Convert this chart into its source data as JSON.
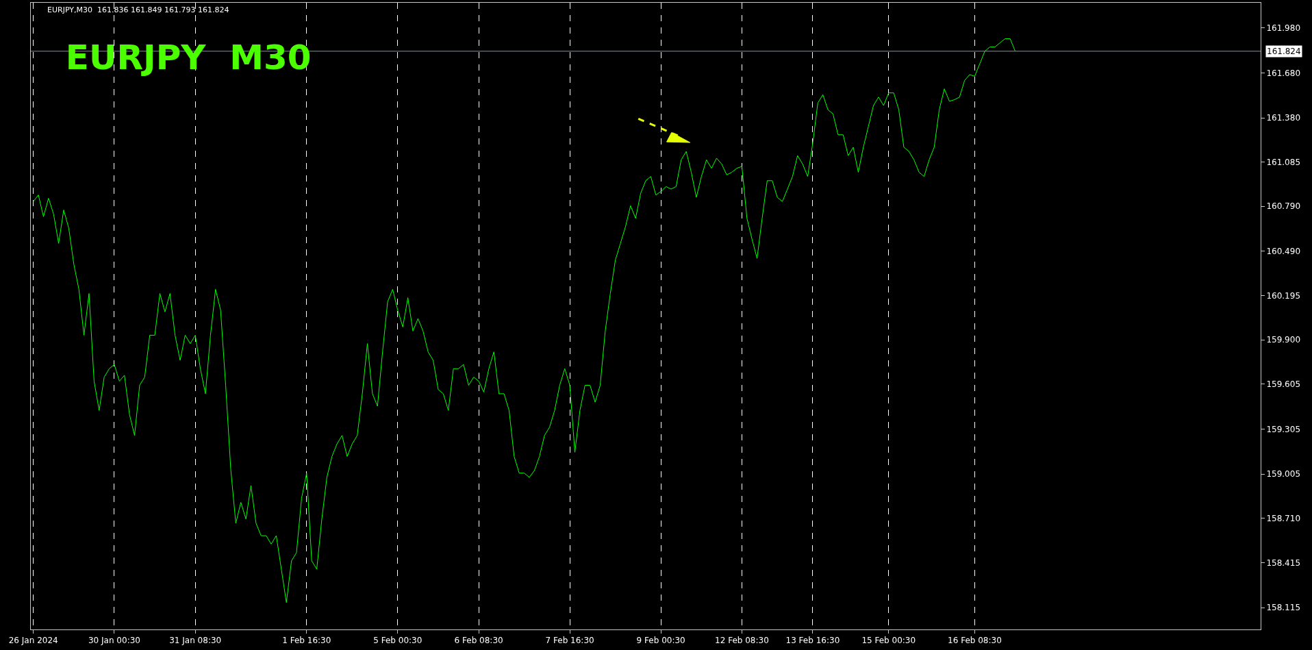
{
  "chart_data": {
    "type": "line",
    "title": "EURJPY  M30",
    "annotations": [
      "EURJPY,M30  161.836 161.849 161.793 161.824"
    ],
    "categories": [
      "26 Jan 2024",
      null,
      null,
      null,
      null,
      null,
      null,
      null,
      null,
      null,
      null,
      null,
      null,
      null,
      null,
      null,
      "30 Jan 00:30",
      null,
      null,
      null,
      null,
      null,
      null,
      null,
      null,
      null,
      null,
      null,
      null,
      null,
      null,
      null,
      "31 Jan 08:30",
      null,
      null,
      null,
      null,
      null,
      null,
      null,
      null,
      null,
      null,
      null,
      null,
      null,
      null,
      null,
      null,
      null,
      null,
      null,
      null,
      null,
      "1 Feb 16:30",
      null,
      null,
      null,
      null,
      null,
      null,
      null,
      null,
      null,
      null,
      null,
      null,
      null,
      null,
      null,
      null,
      null,
      "5 Feb 00:30",
      null,
      null,
      null,
      null,
      null,
      null,
      null,
      null,
      null,
      null,
      null,
      null,
      null,
      null,
      null,
      "6 Feb 08:30",
      null,
      null,
      null,
      null,
      null,
      null,
      null,
      null,
      null,
      null,
      null,
      null,
      null,
      null,
      null,
      null,
      null,
      "7 Feb 16:30",
      null,
      null,
      null,
      null,
      null,
      null,
      null,
      null,
      null,
      null,
      null,
      null,
      null,
      null,
      null,
      null,
      null,
      "9 Feb 00:30",
      null,
      null,
      null,
      null,
      null,
      null,
      null,
      null,
      null,
      null,
      null,
      null,
      null,
      null,
      null,
      "12 Feb 08:30",
      null,
      null,
      null,
      null,
      null,
      null,
      null,
      null,
      null,
      null,
      null,
      null,
      null,
      "13 Feb 16:30",
      null,
      null,
      null,
      null,
      null,
      null,
      null,
      null,
      null,
      null,
      null,
      null,
      null,
      null,
      "15 Feb 00:30",
      null,
      null,
      null,
      null,
      null,
      null,
      null,
      null,
      null,
      null,
      null,
      null,
      null,
      null,
      null,
      null,
      "16 Feb 08:30",
      null,
      null,
      null,
      null,
      null,
      null,
      null,
      null
    ],
    "ylim": [
      157.97,
      162.147
    ],
    "yticks": [
      {
        "value": 158.115,
        "label": "158.115"
      },
      {
        "value": 158.415,
        "label": "158.415"
      },
      {
        "value": 158.71,
        "label": "158.710"
      },
      {
        "value": 159.005,
        "label": "159.005"
      },
      {
        "value": 159.305,
        "label": "159.305"
      },
      {
        "value": 159.605,
        "label": "159.605"
      },
      {
        "value": 159.9,
        "label": "159.900"
      },
      {
        "value": 160.195,
        "label": "160.195"
      },
      {
        "value": 160.49,
        "label": "160.490"
      },
      {
        "value": 160.79,
        "label": "160.790"
      },
      {
        "value": 161.085,
        "label": "161.085"
      },
      {
        "value": 161.38,
        "label": "161.380"
      },
      {
        "value": 161.68,
        "label": "161.680"
      },
      {
        "value": 161.98,
        "label": "161.980"
      }
    ],
    "grid": "x",
    "ref_lines": [
      {
        "axis": "y",
        "value": 161.824,
        "label": "161.824",
        "color": "#8a8f99"
      }
    ],
    "series": [
      {
        "color": "#00ff00",
        "line_style": "solid",
        "marker": "none",
        "values": [
          160.822,
          160.866,
          160.721,
          160.844,
          160.738,
          160.543,
          160.766,
          160.644,
          160.404,
          160.237,
          159.931,
          160.209,
          159.625,
          159.43,
          159.652,
          159.708,
          159.736,
          159.625,
          159.664,
          159.402,
          159.263,
          159.597,
          159.652,
          159.931,
          159.931,
          160.209,
          160.087,
          160.209,
          159.931,
          159.764,
          159.931,
          159.875,
          159.931,
          159.708,
          159.541,
          159.931,
          160.237,
          160.098,
          159.597,
          159.04,
          158.678,
          158.817,
          158.706,
          158.929,
          158.678,
          158.595,
          158.595,
          158.539,
          158.595,
          158.372,
          158.149,
          158.427,
          158.483,
          158.845,
          159.012,
          158.427,
          158.372,
          158.706,
          158.984,
          159.123,
          159.207,
          159.263,
          159.123,
          159.207,
          159.263,
          159.541,
          159.875,
          159.541,
          159.458,
          159.82,
          160.154,
          160.237,
          160.098,
          159.986,
          160.181,
          159.959,
          160.042,
          159.959,
          159.82,
          159.764,
          159.569,
          159.541,
          159.43,
          159.708,
          159.708,
          159.736,
          159.597,
          159.652,
          159.625,
          159.552,
          159.708,
          159.82,
          159.541,
          159.541,
          159.43,
          159.123,
          159.012,
          159.012,
          158.984,
          159.029,
          159.123,
          159.263,
          159.318,
          159.43,
          159.597,
          159.708,
          159.597,
          159.151,
          159.43,
          159.597,
          159.597,
          159.485,
          159.597,
          159.959,
          160.209,
          160.432,
          160.543,
          160.655,
          160.794,
          160.71,
          160.877,
          160.961,
          160.989,
          160.866,
          160.889,
          160.922,
          160.905,
          160.922,
          161.1,
          161.156,
          161.017,
          160.85,
          160.989,
          161.1,
          161.044,
          161.111,
          161.072,
          161.0,
          161.017,
          161.044,
          161.056,
          160.71,
          160.571,
          160.443,
          160.71,
          160.961,
          160.961,
          160.85,
          160.822,
          160.905,
          160.989,
          161.128,
          161.072,
          160.989,
          161.211,
          161.479,
          161.534,
          161.434,
          161.406,
          161.267,
          161.267,
          161.128,
          161.184,
          161.017,
          161.184,
          161.323,
          161.462,
          161.518,
          161.462,
          161.546,
          161.546,
          161.434,
          161.184,
          161.156,
          161.1,
          161.017,
          160.989,
          161.1,
          161.184,
          161.434,
          161.573,
          161.49,
          161.501,
          161.518,
          161.629,
          161.668,
          161.657,
          161.74,
          161.824,
          161.852,
          161.852,
          161.88,
          161.907,
          161.907,
          161.824
        ]
      }
    ]
  }
}
